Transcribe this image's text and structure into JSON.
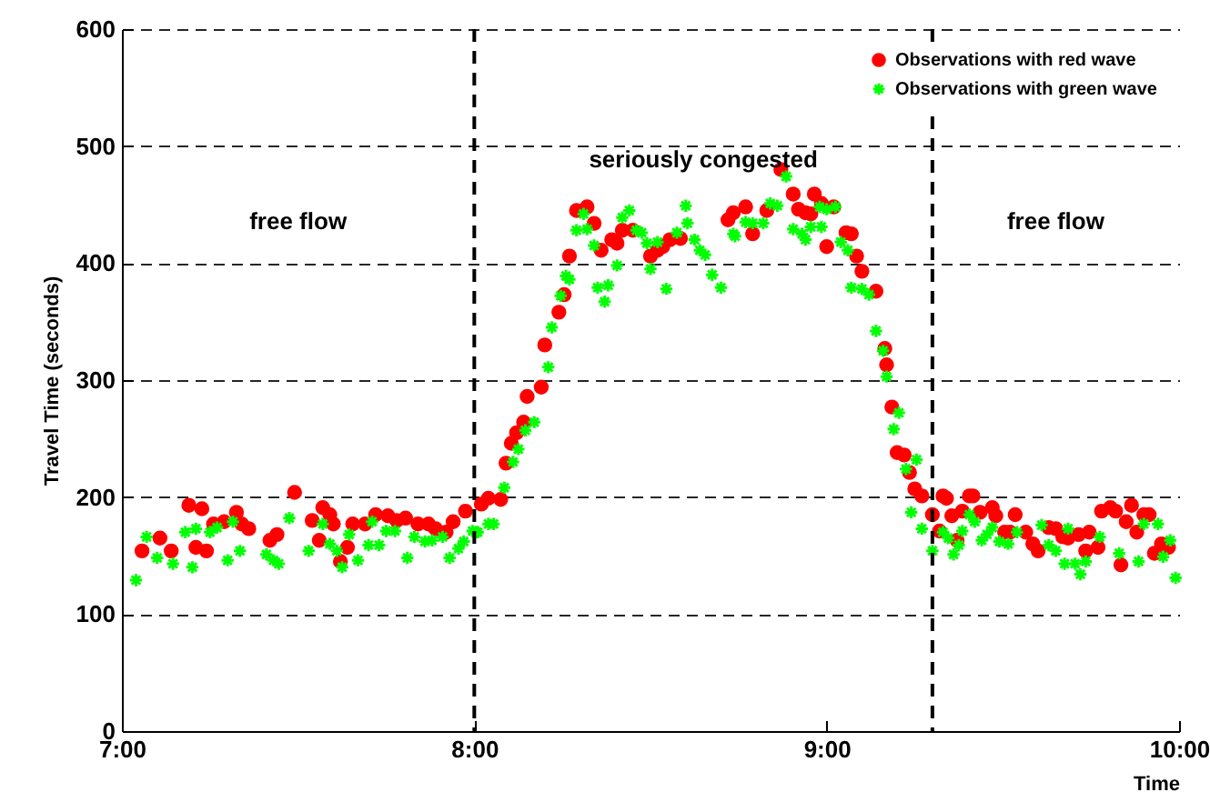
{
  "chart_data": {
    "type": "scatter",
    "xlabel": "Time",
    "ylabel": "Travel Time (seconds)",
    "xlim": [
      7,
      10
    ],
    "xticks": [
      {
        "value": 7,
        "label": "7:00"
      },
      {
        "value": 8,
        "label": "8:00"
      },
      {
        "value": 9,
        "label": "9:00"
      },
      {
        "value": 10,
        "label": "10:00"
      }
    ],
    "ylim": [
      0,
      600
    ],
    "yticks": [
      0,
      100,
      200,
      300,
      400,
      500,
      600
    ],
    "grid": "y",
    "legend": "top right",
    "ref_lines": [
      {
        "axis": "x",
        "value": 8,
        "color": "#000000",
        "line_style": "dashed"
      },
      {
        "axis": "x",
        "value": 9.3,
        "color": "#000000",
        "line_style": "dashed"
      }
    ],
    "annotations": [
      "free flow",
      "seriously congested",
      "free flow"
    ],
    "series": [
      {
        "name": "Observations with red wave",
        "color": "#ff0000",
        "marker": "circle",
        "x": [
          7.057,
          7.108,
          7.14,
          7.19,
          7.21,
          7.227,
          7.24,
          7.26,
          7.29,
          7.325,
          7.34,
          7.36,
          7.42,
          7.44,
          7.49,
          7.54,
          7.56,
          7.57,
          7.59,
          7.6,
          7.62,
          7.64,
          7.655,
          7.69,
          7.72,
          7.755,
          7.78,
          7.805,
          7.84,
          7.87,
          7.89,
          7.92,
          7.94,
          7.975,
          8.02,
          8.04,
          8.075,
          8.09,
          8.105,
          8.12,
          8.14,
          8.15,
          8.19,
          8.2,
          8.24,
          8.255,
          8.27,
          8.29,
          8.32,
          8.34,
          8.36,
          8.39,
          8.405,
          8.42,
          8.45,
          8.5,
          8.52,
          8.535,
          8.555,
          8.585,
          8.72,
          8.735,
          8.77,
          8.79,
          8.83,
          8.87,
          8.905,
          8.92,
          8.94,
          8.955,
          8.965,
          8.985,
          9,
          9.02,
          9.055,
          9.07,
          9.085,
          9.1,
          9.14,
          9.165,
          9.17,
          9.185,
          9.2,
          9.22,
          9.235,
          9.25,
          9.27,
          9.3,
          9.32,
          9.33,
          9.34,
          9.355,
          9.37,
          9.385,
          9.405,
          9.415,
          9.435,
          9.47,
          9.48,
          9.505,
          9.52,
          9.535,
          9.565,
          9.585,
          9.6,
          9.63,
          9.65,
          9.67,
          9.685,
          9.715,
          9.735,
          9.745,
          9.77,
          9.78,
          9.805,
          9.82,
          9.835,
          9.85,
          9.865,
          9.88,
          9.9,
          9.915,
          9.93,
          9.95,
          9.97
        ],
        "values": [
          154,
          165,
          154,
          193,
          157,
          190,
          154,
          177,
          179,
          187,
          177,
          173,
          163,
          168,
          204,
          180,
          163,
          191,
          185,
          177,
          145,
          157,
          177,
          177,
          185,
          184,
          180,
          182,
          177,
          177,
          173,
          170,
          179,
          188,
          194,
          199,
          198,
          229,
          246,
          255,
          264,
          286,
          294,
          330,
          358,
          373,
          406,
          445,
          448,
          434,
          411,
          420,
          417,
          428,
          428,
          406,
          411,
          414,
          420,
          421,
          437,
          443,
          448,
          425,
          445,
          480,
          459,
          446,
          443,
          442,
          459,
          451,
          414,
          448,
          426,
          425,
          406,
          393,
          376,
          327,
          313,
          277,
          238,
          236,
          221,
          207,
          201,
          185,
          171,
          201,
          199,
          184,
          163,
          188,
          201,
          201,
          187,
          191,
          184,
          170,
          170,
          185,
          170,
          160,
          154,
          174,
          173,
          166,
          165,
          168,
          154,
          170,
          157,
          188,
          191,
          188,
          142,
          179,
          193,
          170,
          185,
          185,
          152,
          160,
          157
        ]
      },
      {
        "name": "Observations with green wave",
        "color": "#00ff00",
        "marker": "cross",
        "x": [
          7.04,
          7.07,
          7.1,
          7.145,
          7.18,
          7.2,
          7.21,
          7.25,
          7.27,
          7.3,
          7.315,
          7.335,
          7.41,
          7.43,
          7.445,
          7.475,
          7.53,
          7.57,
          7.59,
          7.61,
          7.625,
          7.645,
          7.67,
          7.7,
          7.71,
          7.73,
          7.75,
          7.775,
          7.81,
          7.83,
          7.86,
          7.88,
          7.91,
          7.93,
          7.955,
          7.97,
          7.995,
          8.005,
          8.01,
          8.04,
          8.055,
          8.085,
          8.11,
          8.125,
          8.145,
          8.17,
          8.21,
          8.22,
          8.245,
          8.26,
          8.27,
          8.29,
          8.31,
          8.32,
          8.34,
          8.35,
          8.37,
          8.38,
          8.405,
          8.42,
          8.44,
          8.46,
          8.475,
          8.49,
          8.5,
          8.52,
          8.545,
          8.575,
          8.6,
          8.605,
          8.625,
          8.64,
          8.655,
          8.675,
          8.7,
          8.735,
          8.74,
          8.77,
          8.79,
          8.82,
          8.84,
          8.86,
          8.885,
          8.905,
          8.93,
          8.94,
          8.955,
          8.98,
          8.985,
          9,
          9.025,
          9.04,
          9.06,
          9.07,
          9.1,
          9.12,
          9.14,
          9.16,
          9.17,
          9.19,
          9.205,
          9.225,
          9.24,
          9.255,
          9.27,
          9.3,
          9.33,
          9.345,
          9.36,
          9.375,
          9.385,
          9.405,
          9.42,
          9.44,
          9.455,
          9.47,
          9.49,
          9.515,
          9.54,
          9.61,
          9.63,
          9.65,
          9.675,
          9.685,
          9.705,
          9.72,
          9.735,
          9.775,
          9.83,
          9.885,
          9.9,
          9.94,
          9.955,
          9.975,
          9.99
        ],
        "values": [
          129,
          166,
          148,
          143,
          170,
          140,
          173,
          170,
          174,
          146,
          179,
          154,
          151,
          146,
          143,
          182,
          154,
          177,
          160,
          154,
          140,
          168,
          146,
          159,
          179,
          159,
          171,
          171,
          148,
          166,
          162,
          163,
          166,
          148,
          156,
          162,
          171,
          170,
          170,
          177,
          177,
          208,
          230,
          241,
          257,
          264,
          311,
          345,
          372,
          389,
          386,
          428,
          442,
          429,
          415,
          379,
          367,
          381,
          398,
          439,
          445,
          428,
          426,
          417,
          395,
          418,
          378,
          426,
          449,
          434,
          420,
          411,
          407,
          390,
          379,
          425,
          423,
          435,
          434,
          434,
          451,
          449,
          474,
          429,
          425,
          420,
          431,
          448,
          431,
          446,
          448,
          418,
          411,
          379,
          378,
          373,
          342,
          325,
          303,
          258,
          272,
          224,
          187,
          232,
          173,
          154,
          170,
          165,
          151,
          159,
          171,
          185,
          179,
          163,
          168,
          174,
          162,
          160,
          170,
          176,
          159,
          154,
          143,
          173,
          143,
          134,
          145,
          166,
          152,
          145,
          177,
          177,
          149,
          163,
          131
        ]
      }
    ]
  }
}
